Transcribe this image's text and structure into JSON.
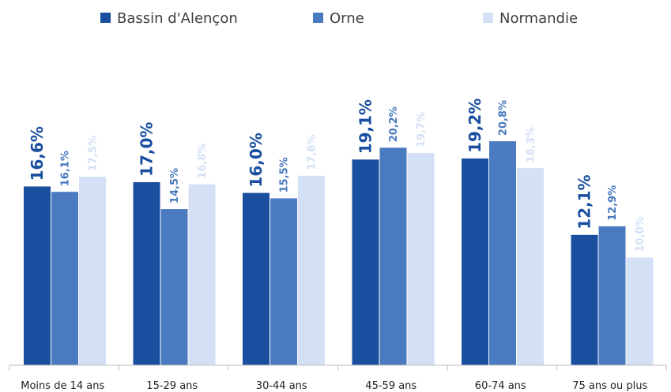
{
  "chart_data": {
    "type": "bar",
    "categories": [
      "Moins de 14 ans",
      "15-29 ans",
      "30-44 ans",
      "45-59 ans",
      "60-74 ans",
      "75 ans ou plus"
    ],
    "series": [
      {
        "name": "Bassin d'Alençon",
        "color": "#1a4fa0",
        "values": [
          16.6,
          17.0,
          16.0,
          19.1,
          19.2,
          12.1
        ],
        "labels": [
          "16,6%",
          "17,0%",
          "16,0%",
          "19,1%",
          "19,2%",
          "12,1%"
        ]
      },
      {
        "name": "Orne",
        "color": "#4a7abf",
        "values": [
          16.1,
          14.5,
          15.5,
          20.2,
          20.8,
          12.9
        ],
        "labels": [
          "16,1%",
          "14,5%",
          "15,5%",
          "20,2%",
          "20,8%",
          "12,9%"
        ]
      },
      {
        "name": "Normandie",
        "color": "#d3e0f5",
        "values": [
          17.5,
          16.8,
          17.6,
          19.7,
          18.3,
          10.0
        ],
        "labels": [
          "17,5%",
          "16,8%",
          "17,6%",
          "19,7%",
          "18,3%",
          "10,0%"
        ]
      }
    ],
    "ylim": [
      0,
      26
    ],
    "grid": false,
    "legend_position": "top",
    "title": "",
    "xlabel": "",
    "ylabel": ""
  }
}
